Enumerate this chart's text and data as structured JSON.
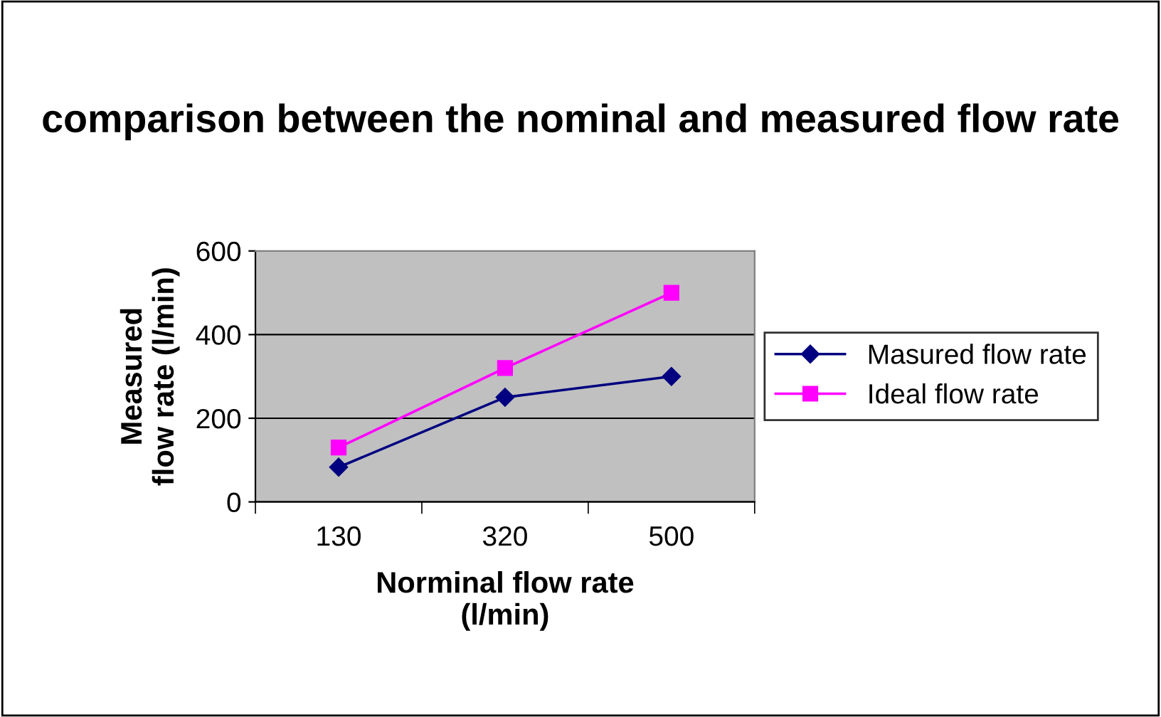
{
  "chart_data": {
    "type": "line",
    "title": "comparison between the nominal and measured flow rate",
    "xlabel": "Norminal flow rate\n(l/min)",
    "ylabel": "Measured\nflow rate (l/min)",
    "categories": [
      "130",
      "320",
      "500"
    ],
    "series": [
      {
        "name": "Masured flow rate",
        "color": "#000080",
        "marker": "diamond",
        "values": [
          83,
          250,
          300
        ]
      },
      {
        "name": "Ideal flow rate",
        "color": "#ff00ff",
        "marker": "square",
        "values": [
          130,
          320,
          500
        ]
      }
    ],
    "ylim": [
      0,
      600
    ],
    "yticks": [
      0,
      200,
      400,
      600
    ],
    "grid": "y",
    "legend": "right",
    "line_style": "solid"
  }
}
